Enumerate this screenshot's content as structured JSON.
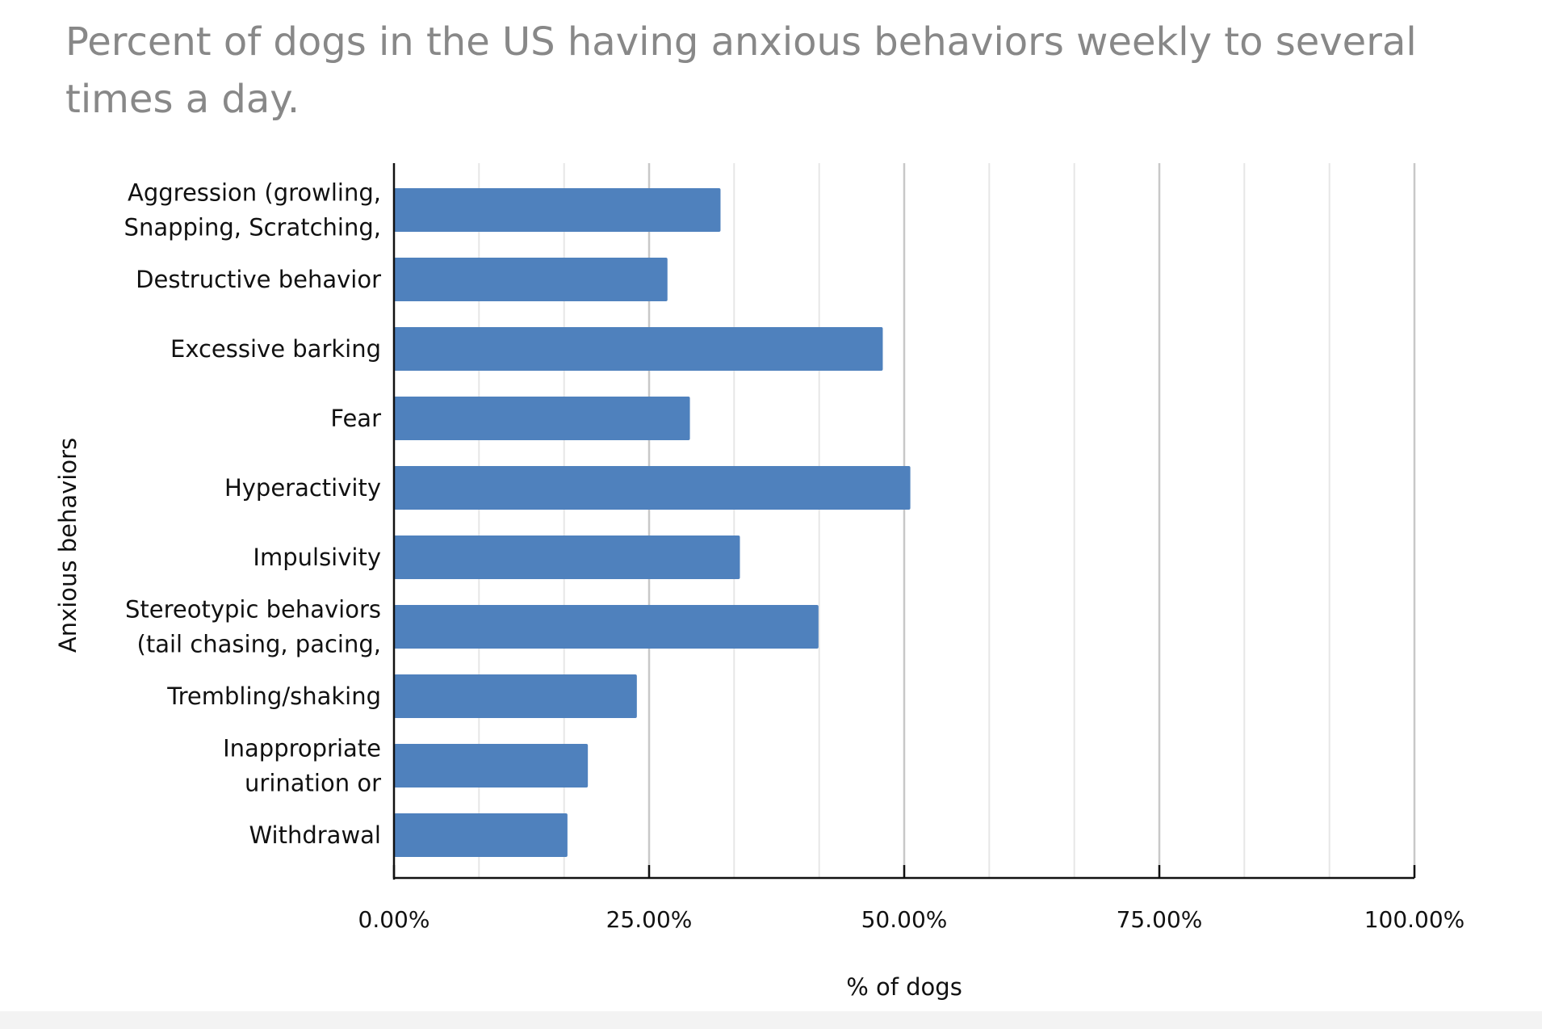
{
  "chart_data": {
    "type": "bar",
    "orientation": "horizontal",
    "title": "Percent of dogs in the US having anxious behaviors weekly to several times a day.",
    "title_lines": [
      "Percent of dogs in the US having anxious behaviors weekly to several",
      "times a day."
    ],
    "xlabel": "% of dogs",
    "ylabel": "Anxious behaviors",
    "xlim": [
      0,
      100
    ],
    "ticks": [
      0,
      25,
      50,
      75,
      100
    ],
    "tick_labels": [
      "0.00%",
      "25.00%",
      "50.00%",
      "75.00%",
      "100.00%"
    ],
    "minor_gridlines": [
      8.33,
      16.67,
      33.33,
      41.67,
      58.33,
      66.67,
      83.33,
      91.67
    ],
    "grid": true,
    "categories": [
      {
        "lines": [
          "Aggression (growling,",
          "Snapping, Scratching,"
        ],
        "value": 32
      },
      {
        "lines": [
          "Destructive behavior"
        ],
        "value": 26.8
      },
      {
        "lines": [
          "Excessive barking"
        ],
        "value": 47.9
      },
      {
        "lines": [
          "Fear"
        ],
        "value": 29
      },
      {
        "lines": [
          "Hyperactivity"
        ],
        "value": 50.6
      },
      {
        "lines": [
          "Impulsivity"
        ],
        "value": 33.9
      },
      {
        "lines": [
          "Stereotypic behaviors",
          "(tail chasing, pacing,"
        ],
        "value": 41.6
      },
      {
        "lines": [
          "Trembling/shaking"
        ],
        "value": 23.8
      },
      {
        "lines": [
          "Inappropriate",
          "urination or"
        ],
        "value": 19
      },
      {
        "lines": [
          "Withdrawal"
        ],
        "value": 17
      }
    ],
    "bar_color": "#4f81bd",
    "grid_major_color": "#c8c8c8",
    "grid_minor_color": "#e6e6e6",
    "axis_color": "#111111"
  }
}
